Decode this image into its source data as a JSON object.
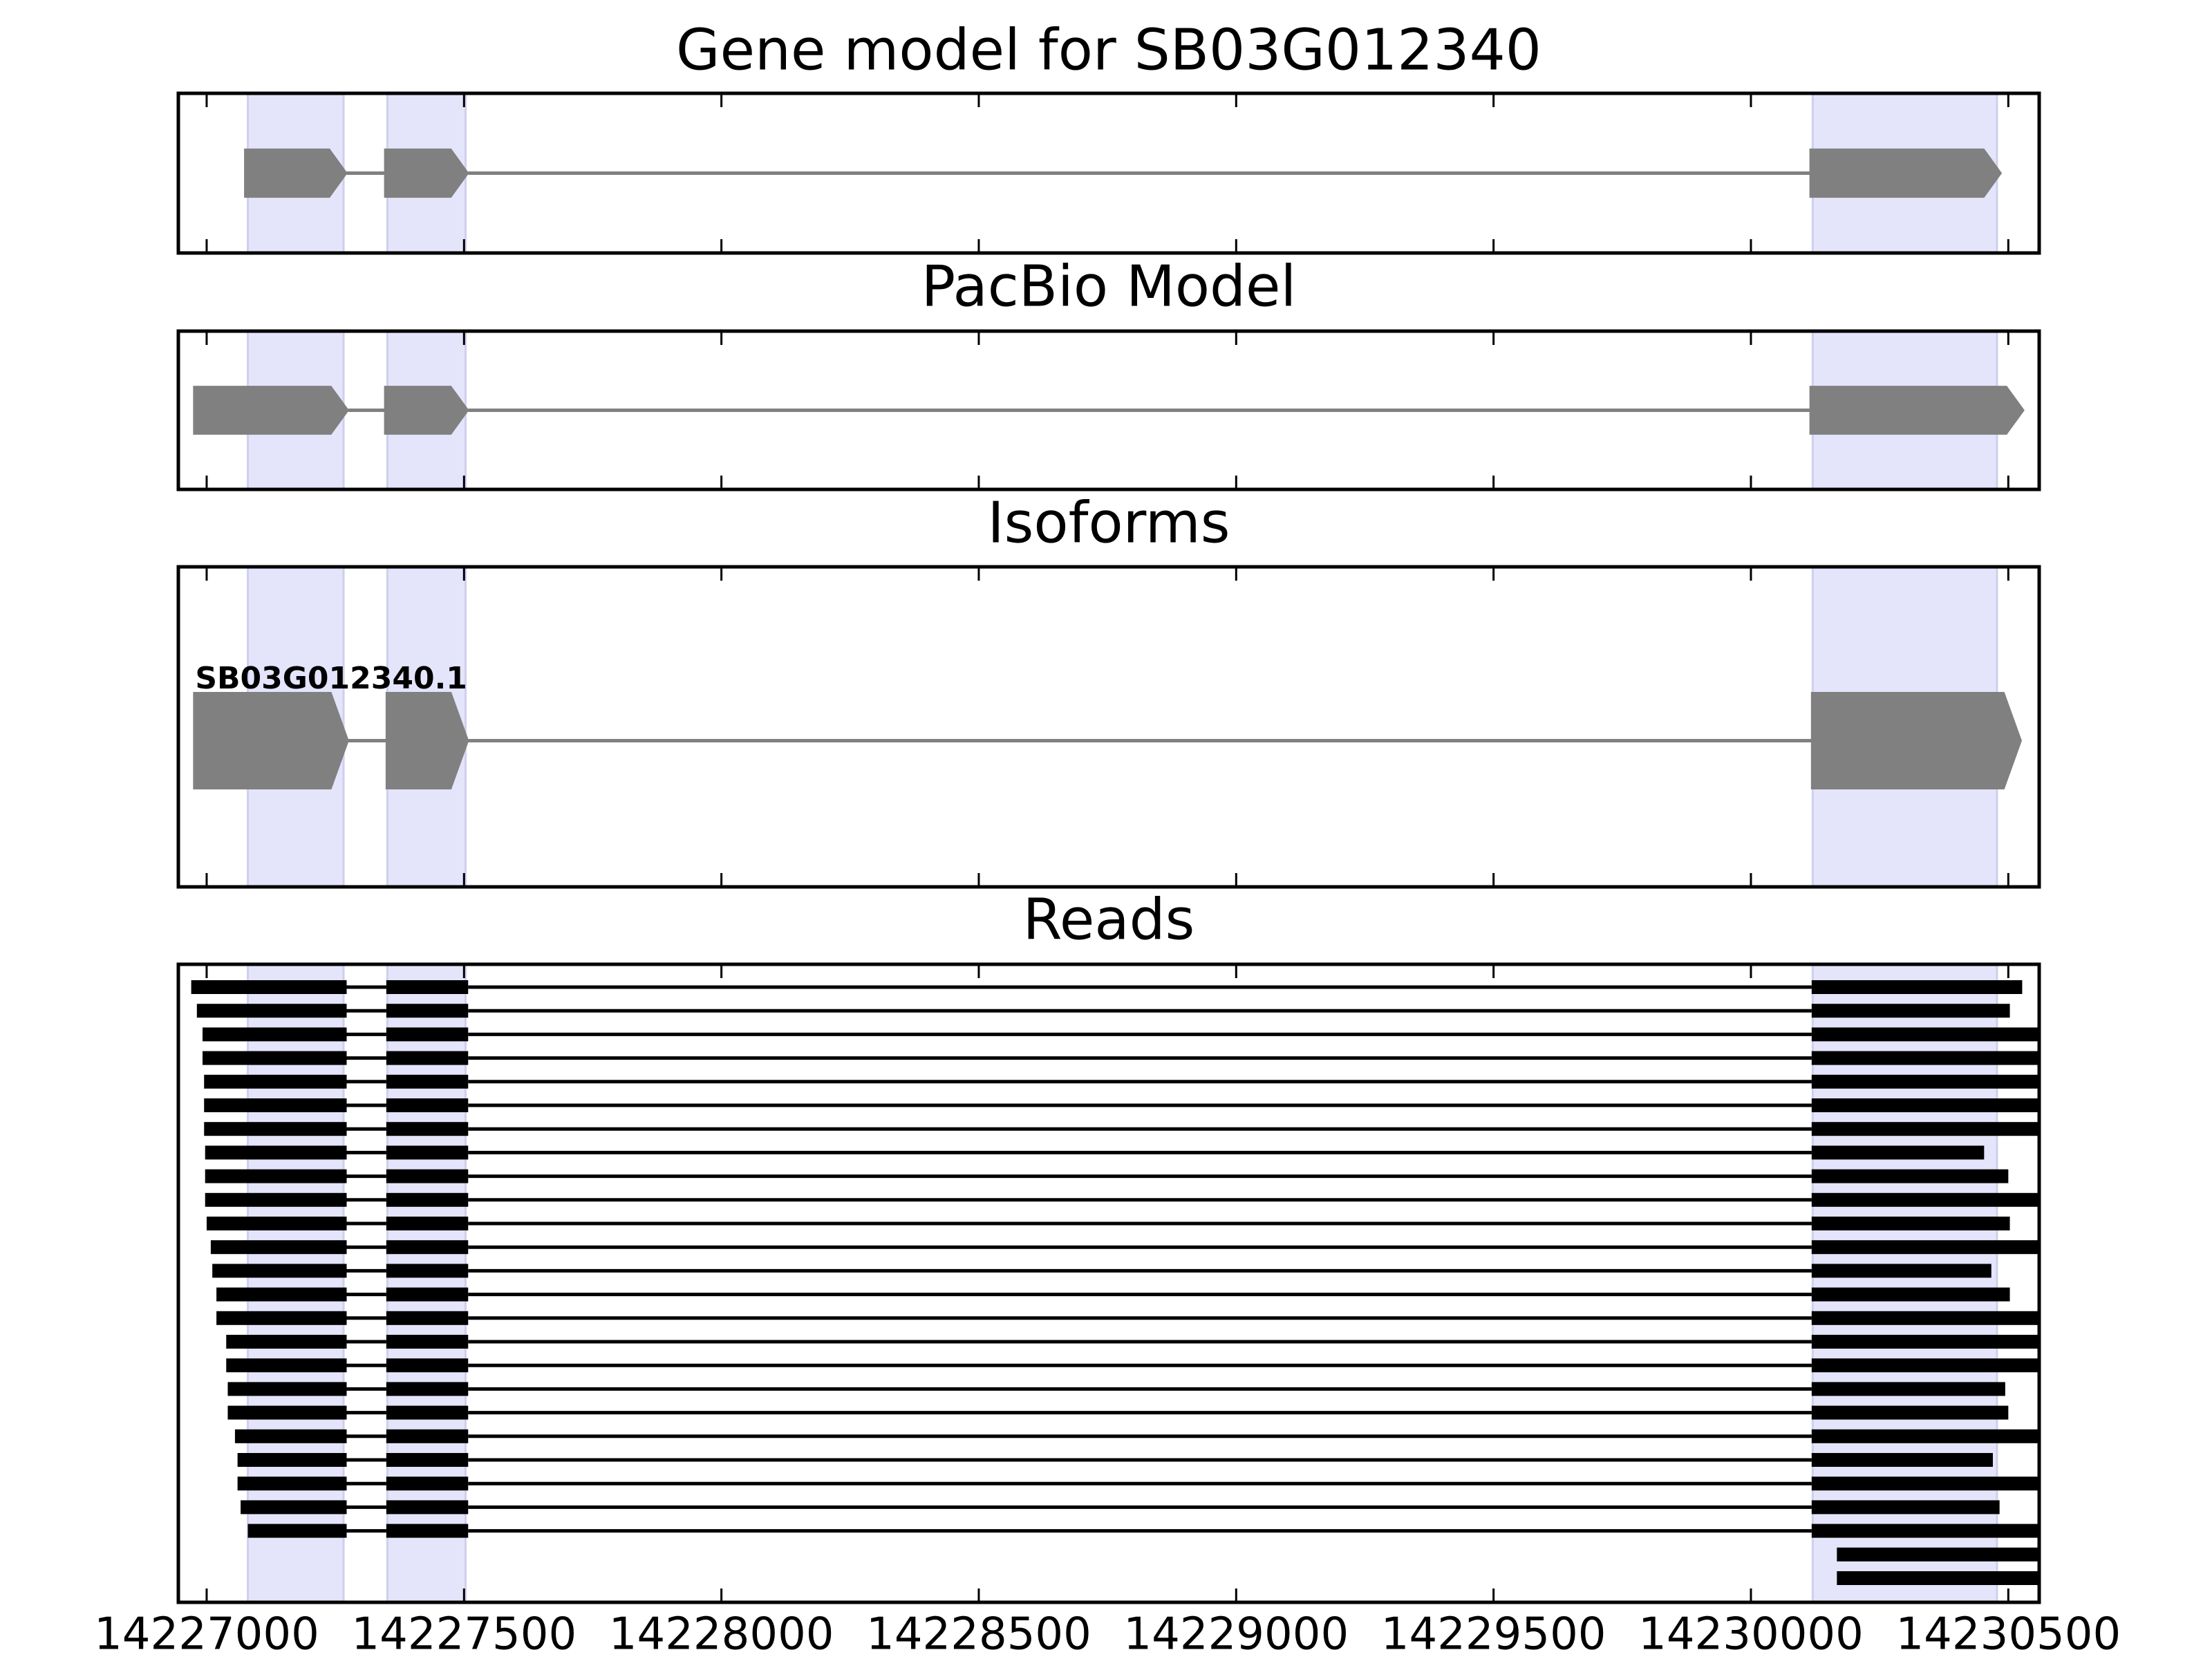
{
  "chart_data": [
    {
      "type": "gene_model",
      "title": "Gene model for SB03G012340",
      "xlim": [
        14226945,
        14230560
      ],
      "xticks": [
        14227000,
        14227500,
        14228000,
        14228500,
        14229000,
        14229500,
        14230000,
        14230500
      ],
      "shaded": [
        [
          14227080,
          14227266
        ],
        [
          14227351,
          14227503
        ],
        [
          14230120,
          14230478
        ]
      ],
      "exons": [
        [
          14227074,
          14227272
        ],
        [
          14227346,
          14227508
        ],
        [
          14230115,
          14230486
        ]
      ]
    },
    {
      "type": "gene_model",
      "title": "PacBio Model",
      "xlim": [
        14226945,
        14230560
      ],
      "xticks": [
        14227000,
        14227500,
        14228000,
        14228500,
        14229000,
        14229500,
        14230000,
        14230500
      ],
      "shaded": [
        [
          14227080,
          14227266
        ],
        [
          14227351,
          14227503
        ],
        [
          14230120,
          14230478
        ]
      ],
      "exons": [
        [
          14226975,
          14227275
        ],
        [
          14227346,
          14227508
        ],
        [
          14230115,
          14230530
        ]
      ]
    },
    {
      "type": "gene_model",
      "title": "Isoforms",
      "label": "SB03G012340.1",
      "xlim": [
        14226945,
        14230560
      ],
      "xticks": [
        14227000,
        14227500,
        14228000,
        14228500,
        14229000,
        14229500,
        14230000,
        14230500
      ],
      "shaded": [
        [
          14227080,
          14227266
        ],
        [
          14227351,
          14227503
        ],
        [
          14230120,
          14230478
        ]
      ],
      "exons": [
        [
          14226975,
          14227275
        ],
        [
          14227349,
          14227508
        ],
        [
          14230118,
          14230525
        ]
      ]
    },
    {
      "type": "reads",
      "title": "Reads",
      "xlim": [
        14226945,
        14230560
      ],
      "xticks": [
        14227000,
        14227500,
        14228000,
        14228500,
        14229000,
        14229500,
        14230000,
        14230500
      ],
      "shaded": [
        [
          14227080,
          14227266
        ],
        [
          14227351,
          14227503
        ],
        [
          14230120,
          14230478
        ]
      ],
      "reads": [
        [
          [
            14226970,
            14227272
          ],
          [
            14227349,
            14227508
          ],
          [
            14230118,
            14230527
          ]
        ],
        [
          [
            14226981,
            14227272
          ],
          [
            14227349,
            14227508
          ],
          [
            14230118,
            14230503
          ]
        ],
        [
          [
            14226992,
            14227272
          ],
          [
            14227349,
            14227508
          ],
          [
            14230118,
            14230600
          ]
        ],
        [
          [
            14226992,
            14227272
          ],
          [
            14227349,
            14227508
          ],
          [
            14230118,
            14230600
          ]
        ],
        [
          [
            14226995,
            14227272
          ],
          [
            14227349,
            14227508
          ],
          [
            14230118,
            14230600
          ]
        ],
        [
          [
            14226995,
            14227272
          ],
          [
            14227349,
            14227508
          ],
          [
            14230118,
            14230600
          ]
        ],
        [
          [
            14226995,
            14227272
          ],
          [
            14227349,
            14227508
          ],
          [
            14230118,
            14230600
          ]
        ],
        [
          [
            14226997,
            14227272
          ],
          [
            14227349,
            14227508
          ],
          [
            14230118,
            14230453
          ]
        ],
        [
          [
            14226997,
            14227272
          ],
          [
            14227349,
            14227508
          ],
          [
            14230118,
            14230500
          ]
        ],
        [
          [
            14226997,
            14227272
          ],
          [
            14227349,
            14227508
          ],
          [
            14230118,
            14230600
          ]
        ],
        [
          [
            14227000,
            14227272
          ],
          [
            14227349,
            14227508
          ],
          [
            14230118,
            14230503
          ]
        ],
        [
          [
            14227008,
            14227272
          ],
          [
            14227349,
            14227508
          ],
          [
            14230118,
            14230600
          ]
        ],
        [
          [
            14227011,
            14227272
          ],
          [
            14227349,
            14227508
          ],
          [
            14230118,
            14230467
          ]
        ],
        [
          [
            14227019,
            14227272
          ],
          [
            14227349,
            14227508
          ],
          [
            14230118,
            14230503
          ]
        ],
        [
          [
            14227019,
            14227272
          ],
          [
            14227349,
            14227508
          ],
          [
            14230118,
            14230600
          ]
        ],
        [
          [
            14227038,
            14227272
          ],
          [
            14227349,
            14227508
          ],
          [
            14230118,
            14230600
          ]
        ],
        [
          [
            14227038,
            14227272
          ],
          [
            14227349,
            14227508
          ],
          [
            14230118,
            14230600
          ]
        ],
        [
          [
            14227041,
            14227272
          ],
          [
            14227349,
            14227508
          ],
          [
            14230118,
            14230494
          ]
        ],
        [
          [
            14227041,
            14227272
          ],
          [
            14227349,
            14227508
          ],
          [
            14230118,
            14230500
          ]
        ],
        [
          [
            14227055,
            14227272
          ],
          [
            14227349,
            14227508
          ],
          [
            14230118,
            14230600
          ]
        ],
        [
          [
            14227060,
            14227272
          ],
          [
            14227349,
            14227508
          ],
          [
            14230118,
            14230470
          ]
        ],
        [
          [
            14227060,
            14227272
          ],
          [
            14227349,
            14227508
          ],
          [
            14230118,
            14230600
          ]
        ],
        [
          [
            14227066,
            14227272
          ],
          [
            14227349,
            14227508
          ],
          [
            14230118,
            14230483
          ]
        ],
        [
          [
            14227080,
            14227272
          ],
          [
            14227349,
            14227508
          ],
          [
            14230118,
            14230600
          ]
        ],
        [
          [
            14230167,
            14230600
          ]
        ],
        [
          [
            14230167,
            14230600
          ]
        ]
      ]
    }
  ]
}
